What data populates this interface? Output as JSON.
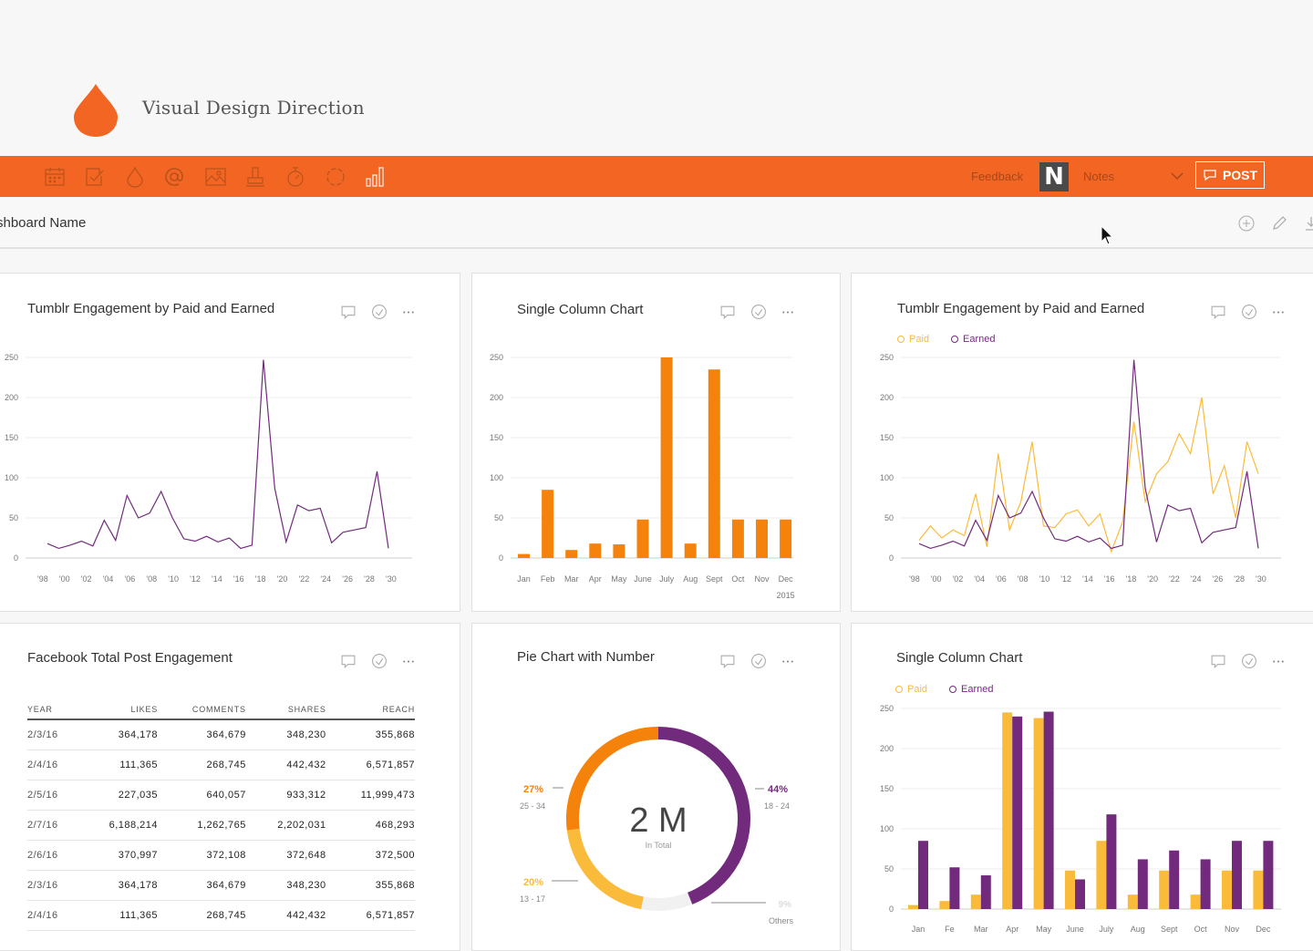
{
  "app": {
    "title": "Visual Design Direction"
  },
  "colors": {
    "accent": "#f26522",
    "orange": "#f5820b",
    "purple": "#722a7d",
    "yellow": "#fbbb3a"
  },
  "toolbar": {
    "icons": [
      "calendar-icon",
      "task-icon",
      "drop-icon",
      "at-icon",
      "image-icon",
      "stamp-icon",
      "timer-icon",
      "refresh-icon",
      "bar-chart-icon"
    ],
    "feedback_label": "Feedback",
    "n_badge": "N",
    "notes_label": "Notes",
    "post_label": "POST"
  },
  "dashboard": {
    "name": "shboard Name"
  },
  "cards": {
    "line1": {
      "title": "Tumblr Engagement by Paid and Earned"
    },
    "bar1": {
      "title": "Single Column Chart"
    },
    "line2": {
      "title": "Tumblr Engagement by Paid and Earned",
      "legend_paid": "Paid",
      "legend_earned": "Earned"
    },
    "table": {
      "title": "Facebook Total Post Engagement"
    },
    "pie": {
      "title": "Pie Chart with Number"
    },
    "bar2": {
      "title": "Single Column Chart",
      "legend_paid": "Paid",
      "legend_earned": "Earned"
    }
  },
  "table": {
    "headers": [
      "YEAR",
      "LIKES",
      "COMMENTS",
      "SHARES",
      "REACH"
    ],
    "rows": [
      [
        "2/3/16",
        "364,178",
        "364,679",
        "348,230",
        "355,868"
      ],
      [
        "2/4/16",
        "111,365",
        "268,745",
        "442,432",
        "6,571,857"
      ],
      [
        "2/5/16",
        "227,035",
        "640,057",
        "933,312",
        "11,999,473"
      ],
      [
        "2/7/16",
        "6,188,214",
        "1,262,765",
        "2,202,031",
        "468,293"
      ],
      [
        "2/6/16",
        "370,997",
        "372,108",
        "372,648",
        "372,500"
      ],
      [
        "2/3/16",
        "364,178",
        "364,679",
        "348,230",
        "355,868"
      ],
      [
        "2/4/16",
        "111,365",
        "268,745",
        "442,432",
        "6,571,857"
      ]
    ]
  },
  "chart_data": [
    {
      "type": "line",
      "title": "Tumblr Engagement by Paid and Earned",
      "ylim": [
        0,
        250
      ],
      "yticks": [
        0,
        50,
        100,
        150,
        200,
        250
      ],
      "xticks": [
        "'98",
        "'00",
        "'02",
        "'04",
        "'06",
        "'08",
        "'10",
        "'12",
        "'14",
        "'16",
        "'18",
        "'20",
        "'22",
        "'24",
        "'26",
        "'28",
        "'30"
      ],
      "series": [
        {
          "name": "Earned",
          "values": [
            18,
            12,
            16,
            21,
            15,
            47,
            22,
            78,
            50,
            56,
            83,
            50,
            24,
            21,
            27,
            20,
            25,
            12,
            16,
            247,
            87,
            20,
            66,
            59,
            62,
            19,
            32,
            35,
            38,
            108,
            12
          ]
        }
      ]
    },
    {
      "type": "bar",
      "title": "Single Column Chart",
      "categories": [
        "Jan",
        "Feb",
        "Mar",
        "Apr",
        "May",
        "June",
        "July",
        "Aug",
        "Sept",
        "Oct",
        "Nov",
        "Dec"
      ],
      "values": [
        5,
        85,
        10,
        18,
        17,
        48,
        250,
        18,
        235,
        48,
        48,
        48
      ],
      "ylim": [
        0,
        250
      ],
      "yticks": [
        0,
        50,
        100,
        150,
        200,
        250
      ],
      "year_label": "2015"
    },
    {
      "type": "line",
      "title": "Tumblr Engagement by Paid and Earned",
      "ylim": [
        0,
        250
      ],
      "yticks": [
        0,
        50,
        100,
        150,
        200,
        250
      ],
      "xticks": [
        "'98",
        "'00",
        "'02",
        "'04",
        "'06",
        "'08",
        "'10",
        "'12",
        "'14",
        "'16",
        "'18",
        "'20",
        "'22",
        "'24",
        "'26",
        "'28",
        "'30"
      ],
      "series": [
        {
          "name": "Paid",
          "values": [
            22,
            40,
            25,
            35,
            28,
            80,
            14,
            130,
            35,
            70,
            145,
            40,
            38,
            55,
            60,
            40,
            55,
            8,
            45,
            170,
            70,
            105,
            120,
            155,
            130,
            200,
            80,
            115,
            50,
            145,
            105
          ]
        },
        {
          "name": "Earned",
          "values": [
            18,
            12,
            16,
            21,
            15,
            47,
            22,
            78,
            50,
            56,
            83,
            50,
            24,
            21,
            27,
            20,
            25,
            12,
            16,
            247,
            87,
            20,
            66,
            59,
            62,
            19,
            32,
            35,
            38,
            108,
            12
          ]
        }
      ]
    },
    {
      "type": "pie",
      "title": "Pie Chart with Number",
      "center_value": "2 M",
      "center_label": "In Total",
      "slices": [
        {
          "label": "18 - 24",
          "pct": "44%",
          "value": 44,
          "color": "#722a7d"
        },
        {
          "label": "Others",
          "pct": "9%",
          "value": 9,
          "color": "#f1f1f1"
        },
        {
          "label": "13 - 17",
          "pct": "20%",
          "value": 20,
          "color": "#fbbb3a"
        },
        {
          "label": "25 - 34",
          "pct": "27%",
          "value": 27,
          "color": "#f5820b"
        }
      ]
    },
    {
      "type": "bar",
      "title": "Single Column Chart",
      "categories": [
        "Jan",
        "Fe",
        "Mar",
        "Apr",
        "May",
        "June",
        "July",
        "Aug",
        "Sept",
        "Oct",
        "Nov",
        "Dec"
      ],
      "ylim": [
        0,
        250
      ],
      "yticks": [
        0,
        50,
        100,
        150,
        200,
        250
      ],
      "series": [
        {
          "name": "Paid",
          "values": [
            5,
            10,
            18,
            245,
            238,
            48,
            85,
            18,
            48,
            18,
            48,
            48
          ]
        },
        {
          "name": "Earned",
          "values": [
            85,
            52,
            42,
            240,
            246,
            37,
            118,
            62,
            73,
            62,
            85,
            85
          ]
        }
      ]
    }
  ]
}
